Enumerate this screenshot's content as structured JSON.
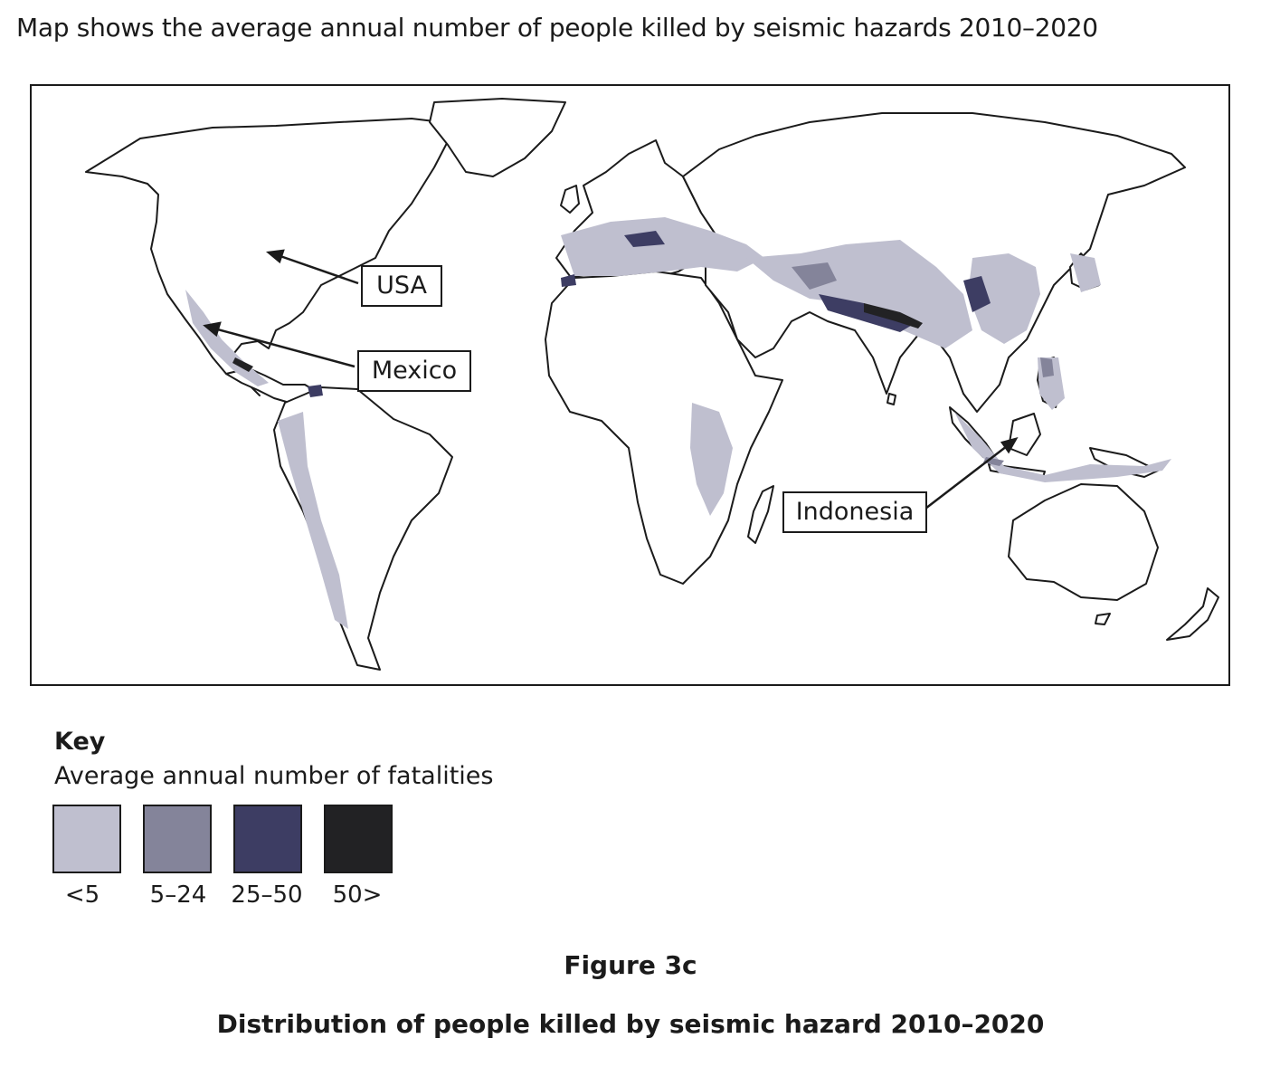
{
  "intro_text": "Map shows the average annual number of people killed by seismic hazards 2010–2020",
  "callouts": {
    "usa": "USA",
    "mexico": "Mexico",
    "indonesia": "Indonesia"
  },
  "key": {
    "title": "Key",
    "subtitle": "Average annual number of fatalities",
    "classes": [
      {
        "label": "<5",
        "color": "#bfbfcf"
      },
      {
        "label": "5–24",
        "color": "#84849a"
      },
      {
        "label": "25–50",
        "color": "#3d3d63"
      },
      {
        "label": "50>",
        "color": "#222224"
      }
    ]
  },
  "figure_number": "Figure 3c",
  "figure_caption": "Distribution of people killed by seismic hazard 2010–2020"
}
